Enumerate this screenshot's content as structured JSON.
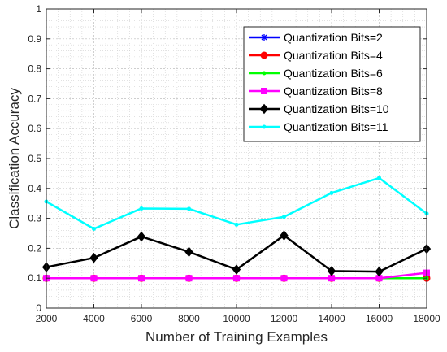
{
  "chart_data": {
    "type": "line",
    "title": "",
    "xlabel": "Number of Training Examples",
    "ylabel": "Classification Accuracy",
    "xlim": [
      2000,
      18000
    ],
    "ylim": [
      0,
      1
    ],
    "xticks": [
      2000,
      4000,
      6000,
      8000,
      10000,
      12000,
      14000,
      16000,
      18000
    ],
    "yticks": [
      0,
      0.1,
      0.2,
      0.3,
      0.4,
      0.5,
      0.6,
      0.7,
      0.8,
      0.9,
      1
    ],
    "grid": true,
    "minor_grid": true,
    "legend_position": "top-right",
    "x": [
      2000,
      4000,
      6000,
      8000,
      10000,
      12000,
      14000,
      16000,
      18000
    ],
    "series": [
      {
        "name": "Quantization Bits=2",
        "color": "#0000ff",
        "marker": "asterisk",
        "values": [
          0.1,
          0.1,
          0.1,
          0.1,
          0.1,
          0.1,
          0.1,
          0.1,
          0.1
        ]
      },
      {
        "name": "Quantization Bits=4",
        "color": "#ff0000",
        "marker": "circle",
        "values": [
          0.1,
          0.1,
          0.1,
          0.1,
          0.1,
          0.1,
          0.1,
          0.1,
          0.1
        ]
      },
      {
        "name": "Quantization Bits=6",
        "color": "#00ff00",
        "marker": "dot",
        "values": [
          0.1,
          0.1,
          0.1,
          0.1,
          0.1,
          0.1,
          0.1,
          0.1,
          0.1
        ]
      },
      {
        "name": "Quantization Bits=8",
        "color": "#ff00ff",
        "marker": "square",
        "values": [
          0.1,
          0.1,
          0.1,
          0.1,
          0.1,
          0.1,
          0.1,
          0.1,
          0.118
        ]
      },
      {
        "name": "Quantization Bits=10",
        "color": "#000000",
        "marker": "diamond",
        "values": [
          0.137,
          0.168,
          0.239,
          0.188,
          0.129,
          0.243,
          0.124,
          0.122,
          0.198
        ]
      },
      {
        "name": "Quantization Bits=11",
        "color": "#00ffff",
        "marker": "dot",
        "values": [
          0.356,
          0.265,
          0.333,
          0.332,
          0.279,
          0.305,
          0.385,
          0.435,
          0.316
        ]
      }
    ]
  }
}
